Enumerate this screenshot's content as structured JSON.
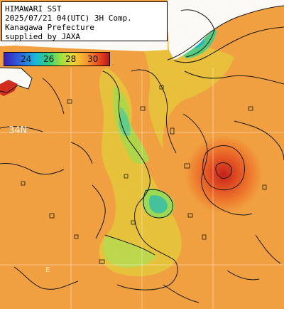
{
  "header": {
    "line1": "HIMAWARI SST",
    "line2": "2025/07/21 04(UTC) 3H Comp.",
    "line3": "Kanagawa Prefecture",
    "line4": "supplied by JAXA"
  },
  "legend": {
    "ticks": [
      "24",
      "26",
      "28",
      "30"
    ],
    "colors": [
      "#3a20b8",
      "#2a6ae0",
      "#19b8d6",
      "#2fd07a",
      "#9fe040",
      "#f2d335",
      "#f89a30",
      "#ec4a1e",
      "#b8161c"
    ]
  },
  "grid": {
    "lat_label": "34N",
    "lon_label": "E"
  }
}
